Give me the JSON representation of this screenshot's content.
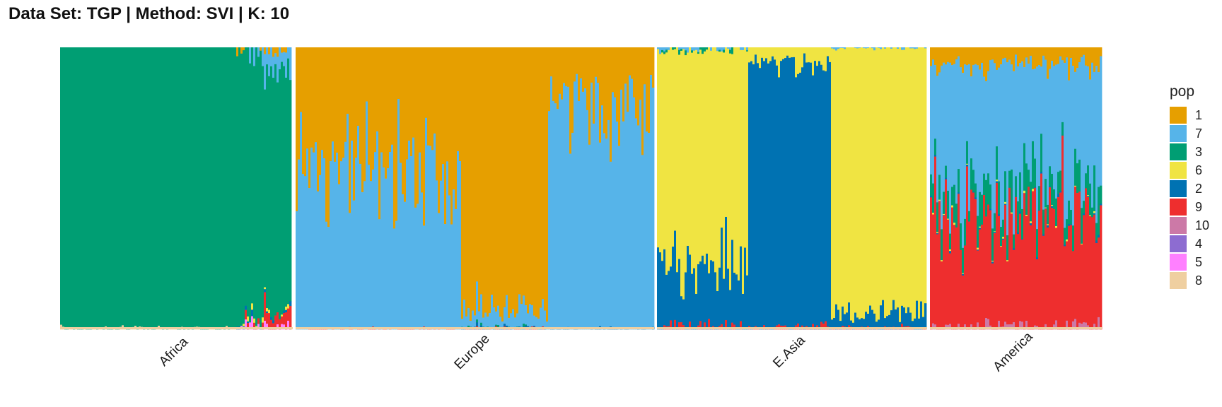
{
  "chart_data": {
    "type": "bar",
    "stacked": true,
    "title": "Data Set: TGP | Method: SVI | K: 10",
    "xlabel": "",
    "ylabel": "",
    "ylim": [
      0,
      1
    ],
    "grid": false,
    "legend_position": "right",
    "legend_title": "pop",
    "categories": [
      "Africa",
      "Europe",
      "E.Asia",
      "America"
    ],
    "components": [
      {
        "name": "1",
        "color": "#E69F00"
      },
      {
        "name": "7",
        "color": "#56B4E9"
      },
      {
        "name": "3",
        "color": "#009E73"
      },
      {
        "name": "6",
        "color": "#F0E442"
      },
      {
        "name": "2",
        "color": "#0072B2"
      },
      {
        "name": "9",
        "color": "#EE2E2E"
      },
      {
        "name": "10",
        "color": "#CC79A7"
      },
      {
        "name": "4",
        "color": "#8D6CD1"
      },
      {
        "name": "5",
        "color": "#FF80FF"
      },
      {
        "name": "8",
        "color": "#EFCFA0"
      }
    ],
    "series": [
      {
        "name": "Africa",
        "segments": [
          {
            "share": 0.76,
            "values": {
              "3": 0.995,
              "8": 0.005
            }
          },
          {
            "share": 0.12,
            "values": {
              "3": 0.88,
              "7": 0.04,
              "1": 0.02,
              "9": 0.015,
              "6": 0.01,
              "2": 0.01,
              "5": 0.02
            }
          },
          {
            "share": 0.12,
            "values": {
              "3": 0.8,
              "7": 0.07,
              "1": 0.035,
              "9": 0.055,
              "6": 0.01,
              "2": 0.01,
              "5": 0.02
            }
          }
        ]
      },
      {
        "name": "Europe",
        "segments": [
          {
            "share": 0.46,
            "values": {
              "1": 0.42,
              "7": 0.575,
              "9": 0.005
            }
          },
          {
            "share": 0.24,
            "values": {
              "1": 0.935,
              "7": 0.05,
              "9": 0.005,
              "2": 0.005,
              "3": 0.005
            }
          },
          {
            "share": 0.3,
            "values": {
              "1": 0.2,
              "7": 0.795,
              "2": 0.005
            }
          }
        ]
      },
      {
        "name": "E.Asia",
        "segments": [
          {
            "share": 0.34,
            "values": {
              "6": 0.77,
              "2": 0.19,
              "9": 0.02,
              "7": 0.01,
              "3": 0.01
            }
          },
          {
            "share": 0.31,
            "values": {
              "2": 0.94,
              "6": 0.05,
              "9": 0.01
            }
          },
          {
            "share": 0.35,
            "values": {
              "6": 0.93,
              "2": 0.055,
              "9": 0.01,
              "7": 0.005
            }
          }
        ]
      },
      {
        "name": "America",
        "segments": [
          {
            "share": 1.0,
            "values": {
              "1": 0.06,
              "7": 0.42,
              "3": 0.09,
              "9": 0.4,
              "2": 0.005,
              "10": 0.02,
              "6": 0.005
            }
          }
        ]
      }
    ]
  }
}
